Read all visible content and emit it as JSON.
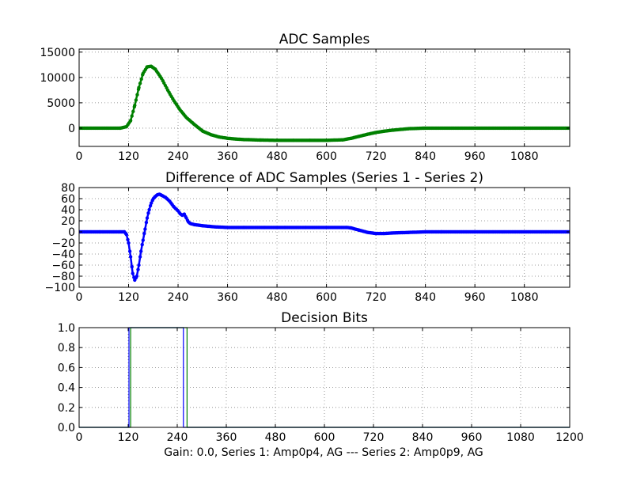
{
  "figure": {
    "xlabel": "Gain: 0.0, Series 1: Amp0p4, AG --- Series 2: Amp0p9, AG"
  },
  "chart_data": [
    {
      "type": "line",
      "title": "ADC Samples",
      "xlabel": "",
      "ylabel": "",
      "xlim": [
        0,
        1190
      ],
      "ylim": [
        -3600,
        15600
      ],
      "x_ticks": [
        0,
        120,
        240,
        360,
        480,
        600,
        720,
        840,
        960,
        1080
      ],
      "y_ticks": [
        0,
        5000,
        10000,
        15000
      ],
      "grid": true,
      "series": [
        {
          "color": "#008000",
          "marker": "point",
          "x": [
            0,
            100,
            115,
            125,
            135,
            145,
            155,
            165,
            175,
            185,
            200,
            215,
            230,
            245,
            260,
            280,
            300,
            320,
            340,
            360,
            380,
            400,
            440,
            480,
            520,
            560,
            600,
            640,
            660,
            680,
            700,
            720,
            740,
            760,
            780,
            800,
            840,
            900,
            960,
            1020,
            1080,
            1190
          ],
          "y": [
            0,
            0,
            300,
            1500,
            4500,
            8000,
            10800,
            12100,
            12200,
            11600,
            9800,
            7500,
            5400,
            3600,
            2100,
            700,
            -600,
            -1300,
            -1750,
            -2000,
            -2150,
            -2250,
            -2350,
            -2400,
            -2400,
            -2400,
            -2400,
            -2300,
            -2000,
            -1600,
            -1200,
            -850,
            -600,
            -400,
            -250,
            -100,
            0,
            0,
            0,
            0,
            0,
            0
          ]
        }
      ]
    },
    {
      "type": "line",
      "title": "Difference of ADC Samples (Series 1 - Series 2)",
      "xlabel": "",
      "ylabel": "",
      "xlim": [
        0,
        1190
      ],
      "ylim": [
        -100,
        80
      ],
      "x_ticks": [
        0,
        120,
        240,
        360,
        480,
        600,
        720,
        840,
        960,
        1080
      ],
      "y_ticks": [
        -100,
        -80,
        -60,
        -40,
        -20,
        0,
        20,
        40,
        60,
        80
      ],
      "grid": true,
      "series": [
        {
          "color": "#0000ff",
          "marker": "point",
          "x": [
            0,
            50,
            100,
            110,
            115,
            120,
            125,
            130,
            135,
            140,
            145,
            150,
            155,
            160,
            165,
            170,
            175,
            180,
            185,
            190,
            195,
            200,
            210,
            220,
            230,
            240,
            245,
            250,
            255,
            260,
            265,
            270,
            280,
            300,
            330,
            360,
            400,
            450,
            500,
            550,
            600,
            650,
            660,
            680,
            700,
            720,
            740,
            760,
            800,
            840,
            880,
            960,
            1080,
            1190
          ],
          "y": [
            0,
            0,
            0,
            0,
            -5,
            -20,
            -45,
            -75,
            -87,
            -80,
            -60,
            -35,
            -15,
            5,
            25,
            40,
            52,
            60,
            64,
            67,
            68,
            66,
            62,
            55,
            45,
            38,
            33,
            30,
            32,
            25,
            18,
            15,
            13,
            11,
            9,
            8,
            8,
            8,
            8,
            8,
            8,
            8,
            7,
            3,
            -1,
            -3,
            -3,
            -2,
            -1,
            0,
            0,
            0,
            0,
            0
          ]
        }
      ]
    },
    {
      "type": "line",
      "title": "Decision Bits",
      "xlabel": "Gain: 0.0, Series 1: Amp0p4, AG --- Series 2: Amp0p9, AG",
      "ylabel": "",
      "xlim": [
        0,
        1200
      ],
      "ylim": [
        0,
        1
      ],
      "x_ticks": [
        0,
        120,
        240,
        360,
        480,
        600,
        720,
        840,
        960,
        1080,
        1200
      ],
      "y_ticks": [
        0.0,
        0.2,
        0.4,
        0.6,
        0.8,
        1.0
      ],
      "grid": true,
      "series": [
        {
          "color": "#0000ff",
          "x": [
            0,
            122,
            122,
            255,
            255,
            1200
          ],
          "y": [
            0,
            0,
            1,
            1,
            0,
            0
          ]
        },
        {
          "color": "#008000",
          "x": [
            0,
            126,
            126,
            264,
            264,
            1200
          ],
          "y": [
            0,
            0,
            1,
            1,
            0,
            0
          ]
        }
      ]
    }
  ]
}
